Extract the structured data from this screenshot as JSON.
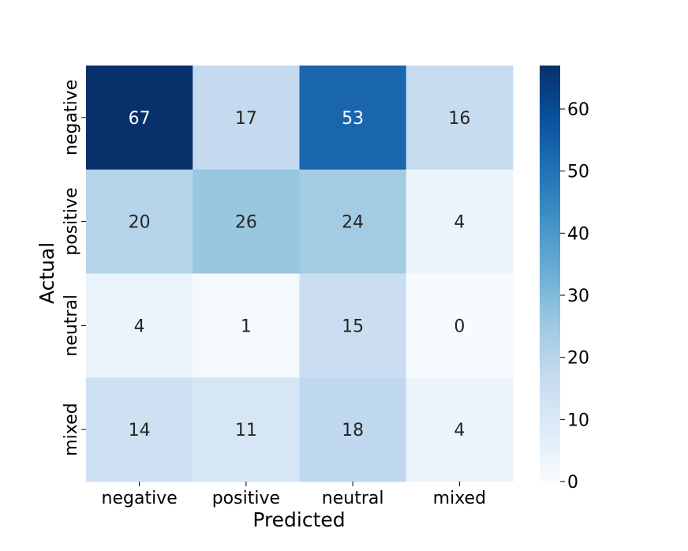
{
  "chart_data": {
    "type": "heatmap",
    "title": "",
    "xlabel": "Predicted",
    "ylabel": "Actual",
    "x_categories": [
      "negative",
      "positive",
      "neutral",
      "mixed"
    ],
    "y_categories": [
      "negative",
      "positive",
      "neutral",
      "mixed"
    ],
    "values": [
      [
        67,
        17,
        53,
        16
      ],
      [
        20,
        26,
        24,
        4
      ],
      [
        4,
        1,
        15,
        0
      ],
      [
        14,
        11,
        18,
        4
      ]
    ],
    "colorbar": {
      "min": 0,
      "max": 67,
      "ticks": [
        0,
        10,
        20,
        30,
        40,
        50,
        60
      ],
      "colormap": "Blues"
    },
    "colors": {
      "low": "#f7fbff",
      "high": "#08306b",
      "text_dark": "#262626",
      "text_light": "#ffffff"
    }
  }
}
